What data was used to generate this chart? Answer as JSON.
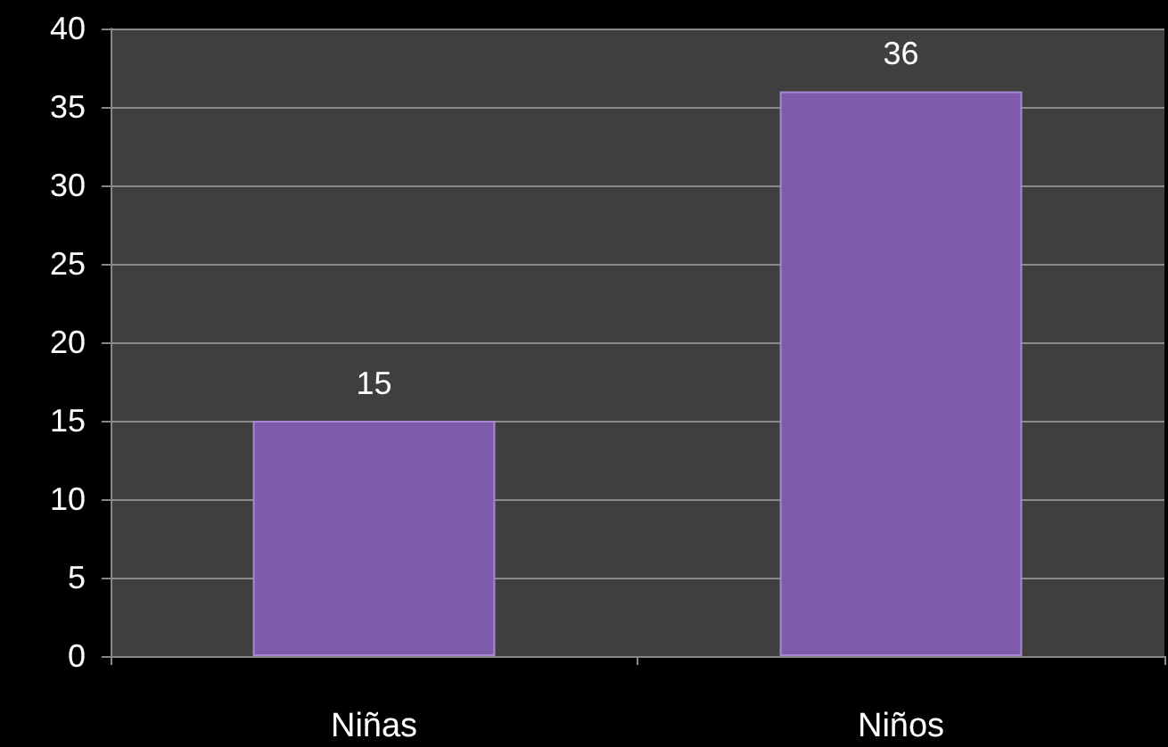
{
  "chart_data": {
    "type": "bar",
    "categories": [
      "Niñas",
      "Niños"
    ],
    "values": [
      15,
      36
    ],
    "color": "#7e5bab",
    "ylim": [
      0,
      40
    ],
    "yticks": [
      0,
      5,
      10,
      15,
      20,
      25,
      30,
      35,
      40
    ],
    "grid": "y",
    "data_labels": true
  }
}
